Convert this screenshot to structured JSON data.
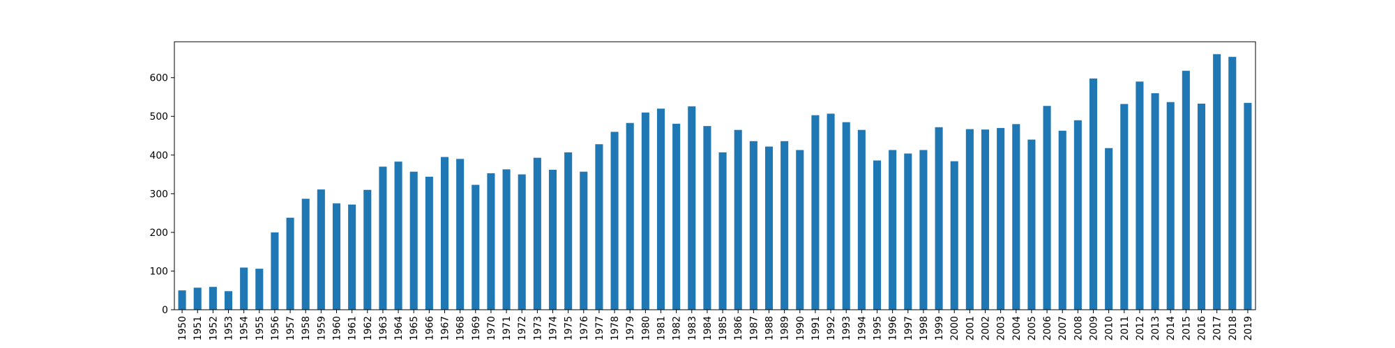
{
  "chart_data": {
    "type": "bar",
    "title": "",
    "xlabel": "",
    "ylabel": "",
    "categories": [
      "1950",
      "1951",
      "1952",
      "1953",
      "1954",
      "1955",
      "1956",
      "1957",
      "1958",
      "1959",
      "1960",
      "1961",
      "1962",
      "1963",
      "1964",
      "1965",
      "1966",
      "1967",
      "1968",
      "1969",
      "1970",
      "1971",
      "1972",
      "1973",
      "1974",
      "1975",
      "1976",
      "1977",
      "1978",
      "1979",
      "1980",
      "1981",
      "1982",
      "1983",
      "1984",
      "1985",
      "1986",
      "1987",
      "1988",
      "1989",
      "1990",
      "1991",
      "1992",
      "1993",
      "1994",
      "1995",
      "1996",
      "1997",
      "1998",
      "1999",
      "2000",
      "2001",
      "2002",
      "2003",
      "2004",
      "2005",
      "2006",
      "2007",
      "2008",
      "2009",
      "2010",
      "2011",
      "2012",
      "2013",
      "2014",
      "2015",
      "2016",
      "2017",
      "2018",
      "2019"
    ],
    "values": [
      50,
      57,
      59,
      48,
      109,
      106,
      200,
      238,
      287,
      311,
      275,
      272,
      310,
      370,
      383,
      357,
      344,
      395,
      390,
      323,
      353,
      363,
      350,
      393,
      362,
      407,
      357,
      428,
      460,
      483,
      510,
      520,
      481,
      526,
      475,
      407,
      465,
      436,
      422,
      436,
      413,
      503,
      507,
      485,
      465,
      386,
      413,
      404,
      413,
      472,
      384,
      467,
      466,
      470,
      480,
      440,
      527,
      463,
      490,
      598,
      418,
      532,
      590,
      560,
      537,
      618,
      533,
      661,
      654,
      535
    ],
    "yticks": [
      0,
      100,
      200,
      300,
      400,
      500,
      600
    ],
    "ylim": [
      0,
      693
    ],
    "bar_color": "#1f77b4",
    "grid": false,
    "legend": "none"
  }
}
